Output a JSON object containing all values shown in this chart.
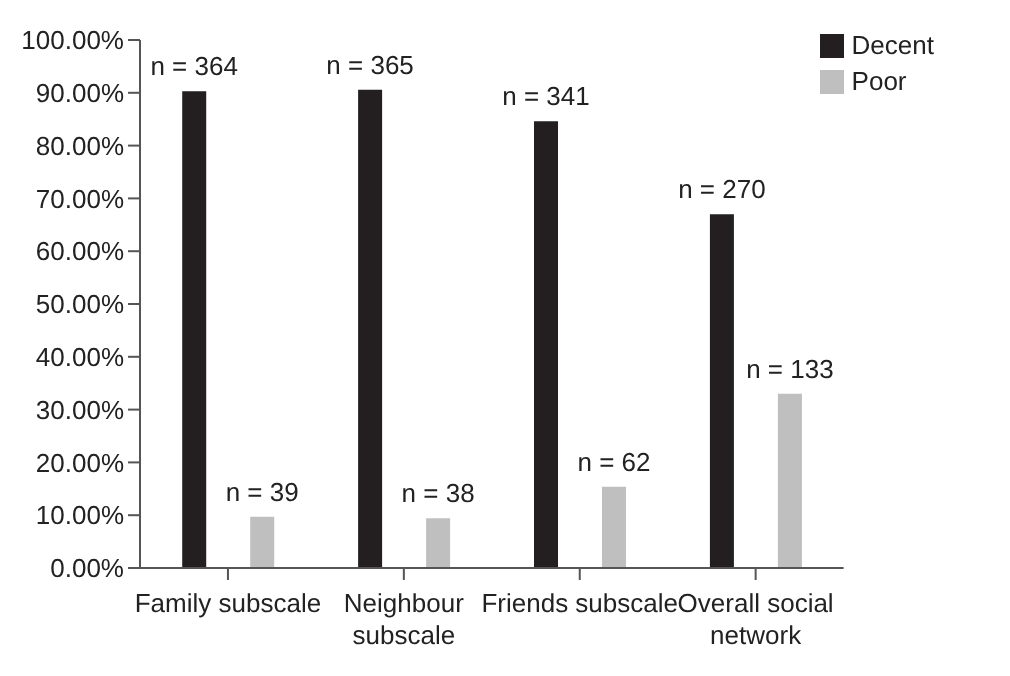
{
  "chart_data": {
    "type": "bar",
    "categories": [
      "Family subscale",
      "Neighbour subscale",
      "Friends subscale",
      "Overall social network"
    ],
    "series": [
      {
        "name": "Decent",
        "color": "#231f20",
        "values": [
          90.3,
          90.6,
          84.6,
          67.0
        ]
      },
      {
        "name": "Poor",
        "color": "#bfbfbf",
        "values": [
          9.7,
          9.4,
          15.4,
          33.0
        ]
      }
    ],
    "annotations": [
      "n = 364",
      "n = 365",
      "n = 341",
      "n = 270",
      "n = 39",
      "n = 38",
      "n = 62",
      "n = 133"
    ],
    "ylim": [
      0,
      100
    ],
    "yticks": [
      {
        "value": 0,
        "label": "0.00%"
      },
      {
        "value": 10,
        "label": "10.00%"
      },
      {
        "value": 20,
        "label": "20.00%"
      },
      {
        "value": 30,
        "label": "30.00%"
      },
      {
        "value": 40,
        "label": "40.00%"
      },
      {
        "value": 50,
        "label": "50.00%"
      },
      {
        "value": 60,
        "label": "60.00%"
      },
      {
        "value": 70,
        "label": "70.00%"
      },
      {
        "value": 80,
        "label": "80.00%"
      },
      {
        "value": 90,
        "label": "90.00%"
      },
      {
        "value": 100,
        "label": "100.00%"
      }
    ],
    "grid": false,
    "legend": "top right"
  }
}
